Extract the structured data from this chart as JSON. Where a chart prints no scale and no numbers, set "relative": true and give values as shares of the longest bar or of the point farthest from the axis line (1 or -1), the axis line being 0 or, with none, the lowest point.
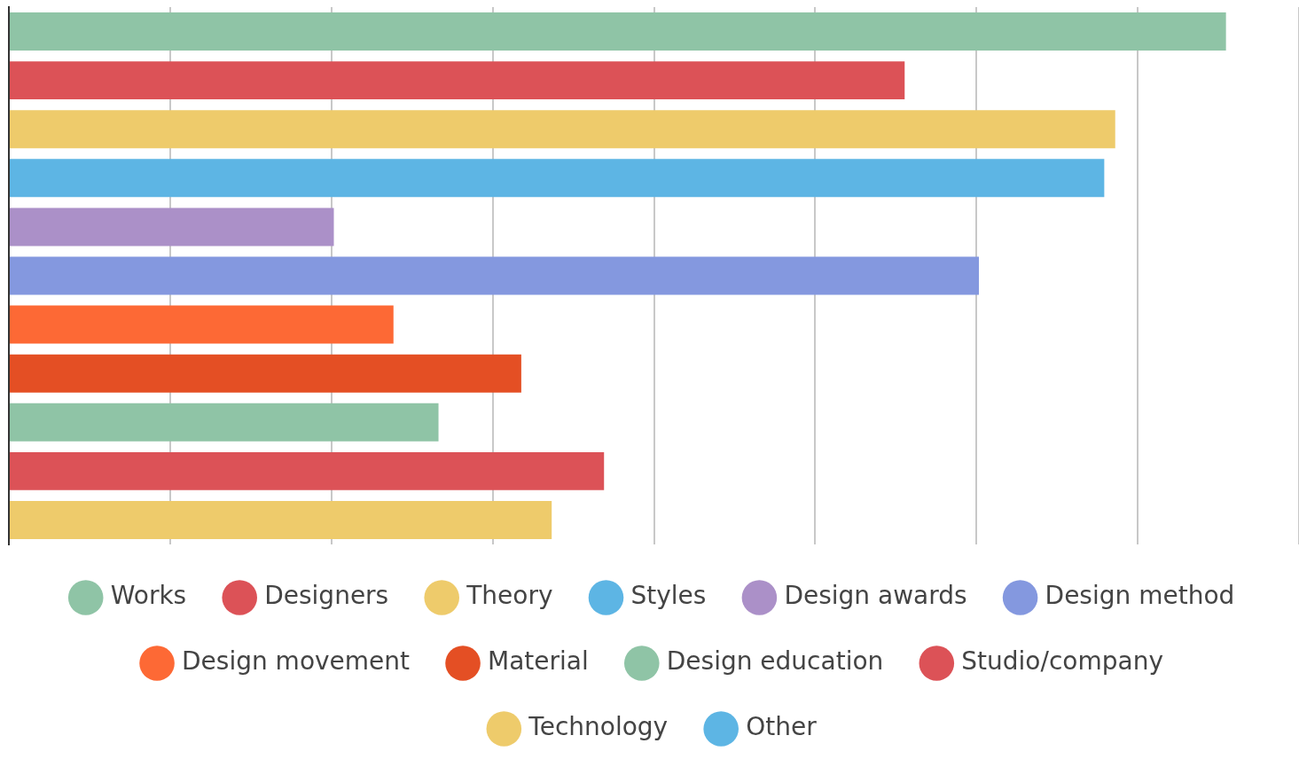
{
  "chart_data": {
    "type": "bar",
    "orientation": "horizontal",
    "stacked": true,
    "relative": true,
    "grid": "x",
    "legend": "bottom",
    "categories": [
      null,
      null,
      null,
      null,
      null,
      null,
      null,
      null,
      null,
      null,
      null
    ],
    "series": [
      {
        "name": "Works",
        "color": "#8fc4a6",
        "values": [
          1,
          null,
          null,
          null,
          null,
          null,
          null,
          null,
          null,
          null,
          null
        ]
      },
      {
        "name": "Designers",
        "color": "#dc5257",
        "values": [
          null,
          0.736,
          null,
          null,
          null,
          null,
          null,
          null,
          null,
          null,
          null
        ]
      },
      {
        "name": "Theory",
        "color": "#eecb6b",
        "values": [
          null,
          null,
          0.909,
          null,
          null,
          null,
          null,
          null,
          null,
          null,
          null
        ]
      },
      {
        "name": "Styles",
        "color": "#5db5e4",
        "values": [
          null,
          null,
          null,
          0.9,
          null,
          null,
          null,
          null,
          null,
          null,
          null
        ]
      },
      {
        "name": "Design awards",
        "color": "#ab90c8",
        "values": [
          null,
          null,
          null,
          null,
          0.267,
          null,
          null,
          null,
          null,
          null,
          null
        ]
      },
      {
        "name": "Design method",
        "color": "#8498df",
        "values": [
          null,
          null,
          null,
          null,
          null,
          0.797,
          null,
          null,
          null,
          null,
          null
        ]
      },
      {
        "name": "Design movement",
        "color": "#fd6935",
        "values": [
          null,
          null,
          null,
          null,
          null,
          null,
          0.316,
          null,
          null,
          null,
          null
        ]
      },
      {
        "name": "Material",
        "color": "#e44f24",
        "values": [
          null,
          null,
          null,
          null,
          null,
          null,
          null,
          0.421,
          null,
          null,
          null
        ]
      },
      {
        "name": "Design education",
        "color": "#8fc4a6",
        "values": [
          null,
          null,
          null,
          null,
          null,
          null,
          null,
          null,
          0.353,
          null,
          null
        ]
      },
      {
        "name": "Studio/company",
        "color": "#dc5257",
        "values": [
          null,
          null,
          null,
          null,
          null,
          null,
          null,
          null,
          null,
          0.489,
          null
        ]
      },
      {
        "name": "Technology",
        "color": "#eecb6b",
        "values": [
          null,
          null,
          null,
          null,
          null,
          null,
          null,
          null,
          null,
          null,
          0.446
        ]
      },
      {
        "name": "Other",
        "color": "#5db5e4",
        "values": [
          null,
          null,
          null,
          null,
          null,
          null,
          null,
          null,
          null,
          null,
          null
        ]
      }
    ]
  }
}
